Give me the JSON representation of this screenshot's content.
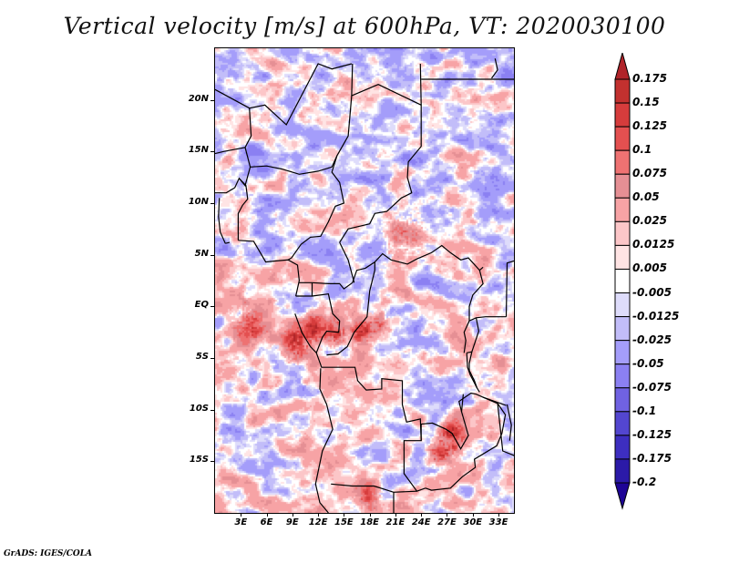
{
  "title": "Vertical velocity [m/s] at 600hPa, VT: 2020030100",
  "footer": "GrADS: IGES/COLA",
  "map": {
    "variable": "Vertical velocity",
    "units": "m/s",
    "level": "600hPa",
    "valid_time": "2020030100",
    "lon_range": [
      0,
      34.8
    ],
    "lat_range": [
      -20,
      25
    ],
    "x_ticks": [
      {
        "value": 3,
        "label": "3E"
      },
      {
        "value": 6,
        "label": "6E"
      },
      {
        "value": 9,
        "label": "9E"
      },
      {
        "value": 12,
        "label": "12E"
      },
      {
        "value": 15,
        "label": "15E"
      },
      {
        "value": 18,
        "label": "18E"
      },
      {
        "value": 21,
        "label": "21E"
      },
      {
        "value": 24,
        "label": "24E"
      },
      {
        "value": 27,
        "label": "27E"
      },
      {
        "value": 30,
        "label": "30E"
      },
      {
        "value": 33,
        "label": "33E"
      }
    ],
    "y_ticks": [
      {
        "value": 20,
        "label": "20N"
      },
      {
        "value": 15,
        "label": "15N"
      },
      {
        "value": 10,
        "label": "10N"
      },
      {
        "value": 5,
        "label": "5N"
      },
      {
        "value": 0,
        "label": "EQ"
      },
      {
        "value": -5,
        "label": "5S"
      },
      {
        "value": -10,
        "label": "10S"
      },
      {
        "value": -15,
        "label": "15S"
      }
    ],
    "hotspots": [
      {
        "lon": 9.5,
        "lat": -3.5,
        "amp": 0.16,
        "r": 1.6
      },
      {
        "lon": 11.5,
        "lat": -2.0,
        "amp": 0.12,
        "r": 1.3
      },
      {
        "lon": 14.0,
        "lat": -2.5,
        "amp": 0.15,
        "r": 1.2
      },
      {
        "lon": 17.0,
        "lat": -2.5,
        "amp": 0.14,
        "r": 1.3
      },
      {
        "lon": 19.0,
        "lat": -1.5,
        "amp": 0.12,
        "r": 1.0
      },
      {
        "lon": 27.5,
        "lat": -12.5,
        "amp": 0.16,
        "r": 1.5
      },
      {
        "lon": 26.0,
        "lat": -14.0,
        "amp": 0.12,
        "r": 1.3
      },
      {
        "lon": 18.0,
        "lat": -18.5,
        "amp": 0.15,
        "r": 1.2
      },
      {
        "lon": 22.0,
        "lat": 7.0,
        "amp": 0.08,
        "r": 2.5
      },
      {
        "lon": 4.0,
        "lat": -1.5,
        "amp": 0.1,
        "r": 2.0
      }
    ],
    "borders": [
      [
        [
          0,
          21.0
        ],
        [
          4,
          19.2
        ],
        [
          5.8,
          19.5
        ],
        [
          8.3,
          17.6
        ],
        [
          12,
          23.5
        ],
        [
          13.6,
          23.0
        ],
        [
          15.9,
          23.5
        ]
      ],
      [
        [
          4,
          19.2
        ],
        [
          4.2,
          16.5
        ],
        [
          3.5,
          15.4
        ],
        [
          1,
          15
        ],
        [
          0,
          14.8
        ]
      ],
      [
        [
          3.5,
          15.4
        ],
        [
          4.1,
          13.5
        ],
        [
          3.5,
          11.7
        ],
        [
          2.8,
          12.4
        ],
        [
          2.3,
          11.5
        ],
        [
          1.3,
          11.0
        ],
        [
          0,
          11.0
        ]
      ],
      [
        [
          2.8,
          12.4
        ],
        [
          3.6,
          11.7
        ],
        [
          3.8,
          10.4
        ],
        [
          3.2,
          9.8
        ],
        [
          2.7,
          9.0
        ],
        [
          2.7,
          6.4
        ]
      ],
      [
        [
          1.7,
          6.2
        ],
        [
          1.2,
          6.1
        ]
      ],
      [
        [
          0.5,
          10.5
        ],
        [
          0.4,
          8.7
        ],
        [
          0.6,
          7.2
        ],
        [
          1.2,
          6.1
        ]
      ],
      [
        [
          4.1,
          13.5
        ],
        [
          6,
          13.6
        ],
        [
          7.8,
          13.3
        ],
        [
          9.8,
          12.8
        ],
        [
          12.0,
          13.1
        ],
        [
          13.6,
          13.5
        ],
        [
          14.2,
          14.6
        ],
        [
          15.5,
          16.5
        ],
        [
          15.9,
          20.4
        ],
        [
          16.0,
          23.5
        ]
      ],
      [
        [
          15.9,
          20.4
        ],
        [
          19.0,
          21.5
        ],
        [
          24.0,
          19.5
        ],
        [
          24.0,
          15.5
        ],
        [
          22.5,
          14.0
        ],
        [
          22.4,
          12.5
        ],
        [
          22.9,
          11.0
        ],
        [
          21.7,
          10.5
        ],
        [
          20.0,
          9.2
        ],
        [
          18.6,
          9.0
        ],
        [
          18.0,
          8.0
        ],
        [
          16.5,
          7.7
        ],
        [
          15.5,
          7.5
        ],
        [
          14.5,
          6.2
        ]
      ],
      [
        [
          14.2,
          14.6
        ],
        [
          13.6,
          13.0
        ],
        [
          14.5,
          12.0
        ],
        [
          15.0,
          10.0
        ],
        [
          14.0,
          9.7
        ],
        [
          13.2,
          8.2
        ],
        [
          12.3,
          6.8
        ],
        [
          11.1,
          6.7
        ],
        [
          10.0,
          6.0
        ],
        [
          8.9,
          4.7
        ],
        [
          8.5,
          4.5
        ]
      ],
      [
        [
          2.7,
          6.4
        ],
        [
          4.5,
          6.3
        ],
        [
          5.9,
          4.3
        ],
        [
          7.0,
          4.4
        ],
        [
          8.5,
          4.5
        ],
        [
          9.6,
          4.0
        ],
        [
          9.8,
          2.5
        ],
        [
          9.4,
          1.0
        ]
      ],
      [
        [
          9.8,
          2.3
        ],
        [
          11.3,
          2.3
        ],
        [
          13.2,
          2.2
        ],
        [
          14.5,
          2.2
        ],
        [
          15.0,
          1.7
        ],
        [
          16.0,
          2.3
        ],
        [
          16.5,
          3.5
        ],
        [
          17.5,
          3.7
        ],
        [
          18.6,
          4.3
        ],
        [
          19.5,
          5.1
        ],
        [
          20.5,
          4.5
        ],
        [
          22.4,
          4.1
        ],
        [
          23.5,
          4.6
        ],
        [
          25.2,
          5.2
        ],
        [
          26.4,
          5.9
        ],
        [
          27.4,
          5.2
        ],
        [
          28.6,
          4.5
        ],
        [
          29.5,
          4.7
        ],
        [
          30.8,
          3.5
        ],
        [
          31.2,
          3.8
        ]
      ],
      [
        [
          14.5,
          6.2
        ],
        [
          15.5,
          4.5
        ],
        [
          16.2,
          2.3
        ]
      ],
      [
        [
          11.3,
          2.3
        ],
        [
          11.3,
          1.0
        ],
        [
          9.4,
          1.0
        ]
      ],
      [
        [
          11.3,
          1.0
        ],
        [
          13.2,
          1.2
        ],
        [
          13.7,
          -0.7
        ],
        [
          14.5,
          -1.4
        ],
        [
          14.4,
          -2.5
        ],
        [
          13.0,
          -2.4
        ],
        [
          12.5,
          -3.0
        ],
        [
          11.8,
          -4.5
        ],
        [
          11.1,
          -3.9
        ]
      ],
      [
        [
          9.3,
          -0.7
        ],
        [
          10.1,
          -2.5
        ],
        [
          11.1,
          -3.9
        ]
      ],
      [
        [
          13.0,
          -4.7
        ],
        [
          14.3,
          -4.6
        ],
        [
          15.4,
          -3.9
        ],
        [
          16.2,
          -2.5
        ],
        [
          17.7,
          -1.0
        ],
        [
          18.0,
          1.5
        ],
        [
          18.6,
          3.5
        ],
        [
          18.6,
          4.3
        ]
      ],
      [
        [
          11.8,
          -4.5
        ],
        [
          12.4,
          -5.9
        ],
        [
          13.0,
          -5.9
        ],
        [
          16.3,
          -5.9
        ],
        [
          16.6,
          -7.2
        ],
        [
          17.6,
          -8.1
        ],
        [
          19.4,
          -8.0
        ],
        [
          19.4,
          -7.0
        ],
        [
          21.8,
          -7.2
        ],
        [
          21.8,
          -9.5
        ],
        [
          22.3,
          -11.2
        ],
        [
          23.9,
          -10.9
        ],
        [
          24.0,
          -13.0
        ],
        [
          22.0,
          -13.0
        ],
        [
          22.0,
          -16.2
        ],
        [
          23.5,
          -17.9
        ],
        [
          24.5,
          -17.6
        ]
      ],
      [
        [
          13.5,
          -17.2
        ],
        [
          16,
          -17.4
        ],
        [
          18.5,
          -17.4
        ],
        [
          20.8,
          -18.0
        ],
        [
          23.5,
          -17.9
        ]
      ],
      [
        [
          12.3,
          -6.0
        ],
        [
          12.2,
          -8.0
        ],
        [
          13.0,
          -9.5
        ],
        [
          13.7,
          -11.9
        ],
        [
          12.5,
          -14.0
        ],
        [
          11.7,
          -17.2
        ],
        [
          12.2,
          -19.0
        ],
        [
          13.2,
          -20
        ]
      ],
      [
        [
          20.8,
          -18.0
        ],
        [
          20.8,
          -20
        ]
      ],
      [
        [
          24.0,
          -13.0
        ],
        [
          24.0,
          -11.4
        ],
        [
          25.3,
          -11.3
        ],
        [
          26.9,
          -11.9
        ],
        [
          27.6,
          -12.3
        ],
        [
          28.6,
          -13.8
        ],
        [
          29.5,
          -12.5
        ],
        [
          28.7,
          -10.2
        ],
        [
          28.4,
          -9.2
        ],
        [
          29.8,
          -8.4
        ],
        [
          30.4,
          -8.5
        ],
        [
          31.2,
          -8.8
        ],
        [
          32.9,
          -9.4
        ],
        [
          33.8,
          -10.5
        ],
        [
          33.4,
          -12.3
        ],
        [
          32.8,
          -13.5
        ],
        [
          30.2,
          -14.8
        ],
        [
          30.3,
          -15.6
        ],
        [
          28.8,
          -16.5
        ],
        [
          27.4,
          -17.6
        ],
        [
          25.2,
          -17.8
        ],
        [
          24.5,
          -17.6
        ]
      ],
      [
        [
          29.0,
          -4.5
        ],
        [
          29.2,
          -3.3
        ],
        [
          29.0,
          -2.5
        ],
        [
          29.6,
          -1.4
        ],
        [
          30.4,
          -1.1
        ],
        [
          31.5,
          -1.0
        ],
        [
          33.9,
          -1.0
        ]
      ],
      [
        [
          29.6,
          -1.4
        ],
        [
          29.6,
          0.0
        ],
        [
          30.0,
          1.1
        ],
        [
          31.2,
          2.2
        ],
        [
          30.8,
          3.5
        ]
      ],
      [
        [
          30.4,
          -1.1
        ],
        [
          30.7,
          -2.4
        ],
        [
          30.5,
          -2.9
        ],
        [
          29.9,
          -4.4
        ],
        [
          29.3,
          -4.5
        ]
      ],
      [
        [
          29.3,
          -4.5
        ],
        [
          29.4,
          -5.9
        ],
        [
          29.7,
          -6.6
        ],
        [
          30.5,
          -7.9
        ],
        [
          30.8,
          -8.3
        ]
      ],
      [
        [
          29.9,
          -4.4
        ],
        [
          29.6,
          -5.5
        ],
        [
          29.6,
          -6.2
        ],
        [
          30.2,
          -7.2
        ],
        [
          30.5,
          -7.9
        ]
      ],
      [
        [
          31.2,
          -8.8
        ],
        [
          33.9,
          -9.6
        ]
      ],
      [
        [
          28.7,
          -10.2
        ],
        [
          28.9,
          -8.5
        ]
      ],
      [
        [
          23.9,
          23.5
        ],
        [
          24.0,
          19.5
        ]
      ],
      [
        [
          24.0,
          22.0
        ],
        [
          34.8,
          22.0
        ]
      ],
      [
        [
          32.6,
          24.0
        ],
        [
          32.9,
          22.9
        ],
        [
          32.2,
          22.1
        ]
      ],
      [
        [
          33.9,
          -1.0
        ],
        [
          34.0,
          4.2
        ],
        [
          34.8,
          4.4
        ]
      ],
      [
        [
          32.9,
          -9.4
        ],
        [
          33.5,
          -14.0
        ],
        [
          35,
          -14.5
        ]
      ],
      [
        [
          34.0,
          -9.5
        ],
        [
          34.5,
          -11.5
        ],
        [
          34.3,
          -13.0
        ]
      ]
    ]
  },
  "colorbar": {
    "levels": [
      "0.175",
      "0.15",
      "0.125",
      "0.1",
      "0.075",
      "0.05",
      "0.025",
      "0.0125",
      "0.005",
      "-0.005",
      "-0.0125",
      "-0.025",
      "-0.05",
      "-0.075",
      "-0.1",
      "-0.125",
      "-0.175",
      "-0.2"
    ],
    "colors": [
      "#b0242a",
      "#c2312f",
      "#d63c3c",
      "#e45050",
      "#ee7272",
      "#e58f94",
      "#f7a3a5",
      "#fcc6c8",
      "#ffe4e4",
      "#ffffff",
      "#dedcfb",
      "#c2bdf9",
      "#a49dfa",
      "#8b80f2",
      "#7062e2",
      "#5346d0",
      "#3d2ec0",
      "#2b1aa8",
      "#1e0496"
    ],
    "upper_arrow_color": "#b0242a",
    "lower_arrow_color": "#1e0496"
  }
}
